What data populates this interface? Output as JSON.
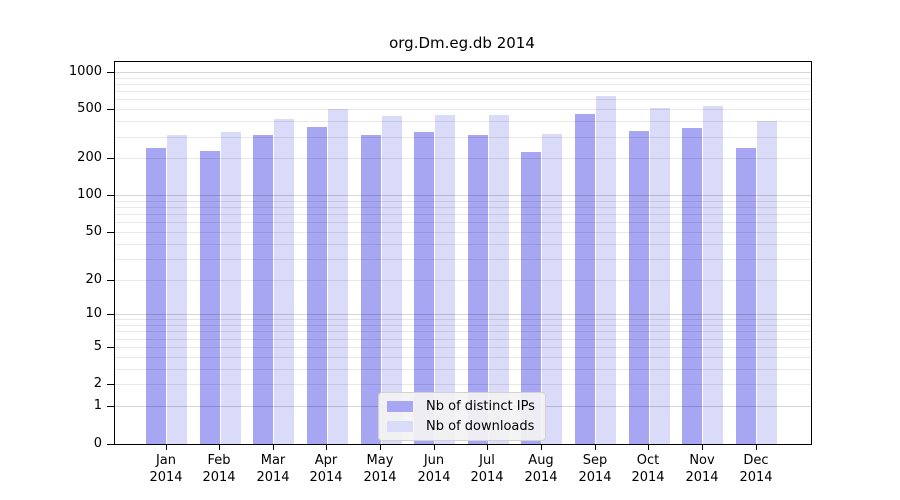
{
  "chart_data": {
    "type": "bar",
    "title": "org.Dm.eg.db 2014",
    "categories": [
      "Jan",
      "Feb",
      "Mar",
      "Apr",
      "May",
      "Jun",
      "Jul",
      "Aug",
      "Sep",
      "Oct",
      "Nov",
      "Dec"
    ],
    "category_year": "2014",
    "series": [
      {
        "name": "Nb of distinct IPs",
        "color": "#a6a6f2",
        "values": [
          245,
          235,
          315,
          365,
          315,
          330,
          315,
          230,
          465,
          340,
          360,
          245
        ]
      },
      {
        "name": "Nb of downloads",
        "color": "#dadaf9",
        "values": [
          315,
          335,
          425,
          510,
          450,
          455,
          455,
          320,
          650,
          520,
          540,
          410
        ]
      }
    ],
    "yscale": "log10(1+x)",
    "y_ticks": [
      1000,
      500,
      200,
      100,
      50,
      20,
      10,
      5,
      2,
      1,
      0
    ],
    "ylim": [
      0,
      1230
    ],
    "grid": "horizontal log minor+major",
    "grid_major_values": [
      1,
      10,
      100,
      1000
    ],
    "legend_position": "bottom-center",
    "colors": {
      "bar_distinct_ips": "#a6a6f2",
      "bar_downloads": "#dadaf9",
      "grid_minor": "rgba(0,0,0,0.09)",
      "grid_major": "rgba(0,0,0,0.16)",
      "frame": "#000000",
      "background": "#ffffff"
    }
  }
}
